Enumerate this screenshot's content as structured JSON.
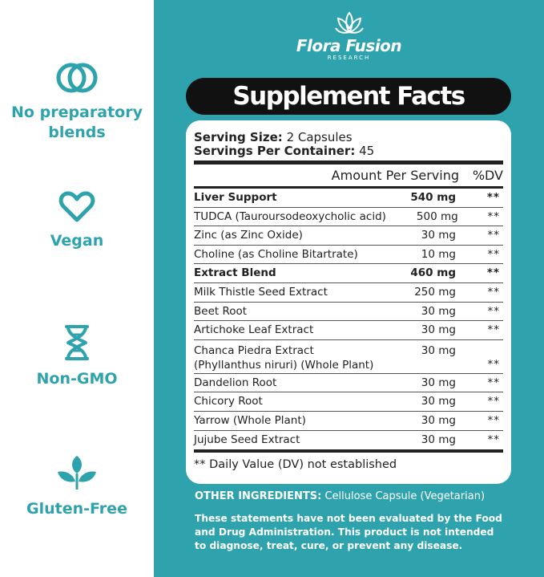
{
  "features": [
    {
      "icon": "interlocking-rings-icon",
      "label_lines": [
        "No preparatory",
        "blends"
      ]
    },
    {
      "icon": "heart-icon",
      "label_lines": [
        "Vegan"
      ]
    },
    {
      "icon": "dna-icon",
      "label_lines": [
        "Non-GMO"
      ]
    },
    {
      "icon": "sprout-icon",
      "label_lines": [
        "Gluten-Free"
      ]
    }
  ],
  "brand": {
    "name": "Flora Fusion",
    "subtitle": "RESEARCH",
    "icon": "lotus-icon"
  },
  "title": "Supplement Facts",
  "serving": {
    "size_label": "Serving Size:",
    "size_value": "2 Capsules",
    "per_container_label": "Servings Per Container:",
    "per_container_value": "45"
  },
  "table_header": {
    "amount": "Amount Per Serving",
    "dv": "%DV"
  },
  "rows": [
    {
      "name": "Liver Support",
      "amount": "540 mg",
      "dv": "**",
      "bold": true
    },
    {
      "name": "TUDCA (Tauroursodeoxycholic acid)",
      "amount": "500 mg",
      "dv": "**"
    },
    {
      "name": "Zinc (as Zinc Oxide)",
      "amount": "30 mg",
      "dv": "**"
    },
    {
      "name": "Choline (as Choline Bitartrate)",
      "amount": "10 mg",
      "dv": "**"
    },
    {
      "name": "Extract Blend",
      "amount": "460 mg",
      "dv": "**",
      "bold": true
    },
    {
      "name": "Milk Thistle Seed Extract",
      "amount": "250 mg",
      "dv": "**"
    },
    {
      "name": "Beet Root",
      "amount": "30 mg",
      "dv": "**"
    },
    {
      "name": "Artichoke Leaf Extract",
      "amount": "30 mg",
      "dv": "**"
    },
    {
      "name": "Chanca Piedra Extract",
      "name2": "(Phyllanthus niruri) (Whole Plant)",
      "amount": "30 mg",
      "dv": "**"
    },
    {
      "name": "Dandelion Root",
      "amount": "30 mg",
      "dv": "**"
    },
    {
      "name": "Chicory Root",
      "amount": "30 mg",
      "dv": "**"
    },
    {
      "name": "Yarrow (Whole Plant)",
      "amount": "30 mg",
      "dv": "**"
    },
    {
      "name": "Jujube Seed Extract",
      "amount": "30 mg",
      "dv": "**"
    }
  ],
  "footnote": "** Daily Value (DV) not established",
  "other_ingredients": {
    "label": "OTHER INGREDIENTS:",
    "value": "Cellulose Capsule (Vegetarian)"
  },
  "disclaimer_lines": [
    "These statements have not been evaluated by the Food",
    "and Drug Administration. This product is not intended",
    "to diagnose, treat, cure, or prevent any disease."
  ],
  "colors": {
    "teal": "#2fa3ad",
    "dark": "#111111",
    "white": "#ffffff"
  }
}
